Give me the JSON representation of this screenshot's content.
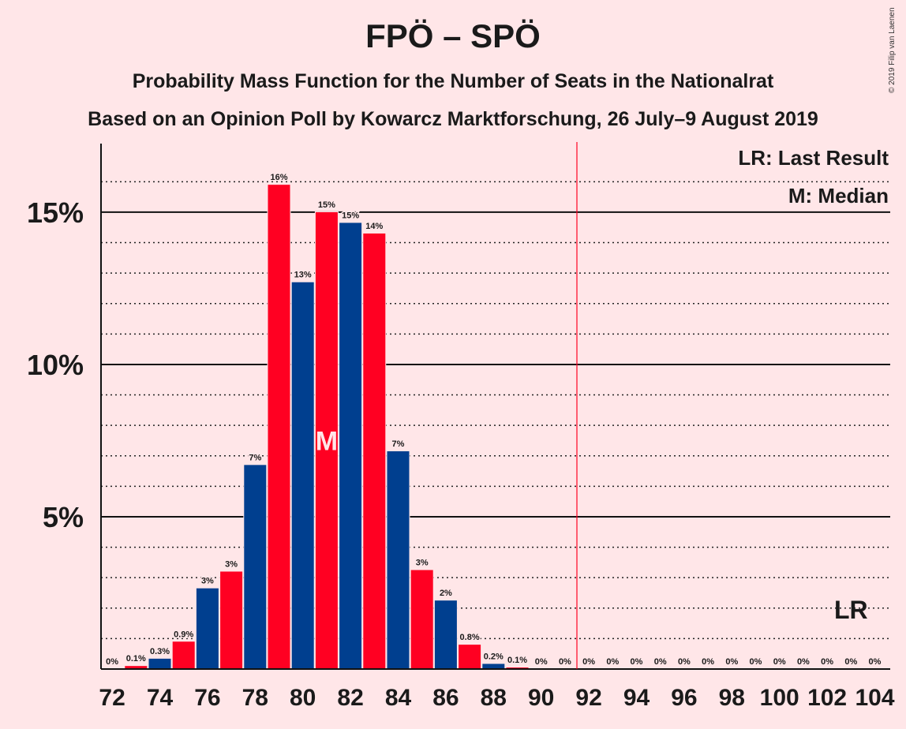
{
  "chart_data": {
    "type": "bar",
    "title": "FPÖ – SPÖ",
    "subtitle": "Probability Mass Function for the Number of Seats in the Nationalrat",
    "subtitle2": "Based on an Opinion Poll by Kowarcz Marktforschung, 26 July–9 August 2019",
    "copyright": "© 2019 Filip van Laenen",
    "x": [
      72,
      73,
      74,
      75,
      76,
      77,
      78,
      79,
      80,
      81,
      82,
      83,
      84,
      85,
      86,
      87,
      88,
      89,
      90,
      91,
      92,
      93,
      94,
      95,
      96,
      97,
      98,
      99,
      100,
      101,
      102,
      103,
      104
    ],
    "values": [
      0,
      0.1,
      0.34,
      0.9,
      2.65,
      3.2,
      6.7,
      15.9,
      12.7,
      15.0,
      14.65,
      14.3,
      7.15,
      3.25,
      2.25,
      0.8,
      0.17,
      0.05,
      0,
      0,
      0,
      0,
      0,
      0,
      0,
      0,
      0,
      0,
      0,
      0,
      0,
      0,
      0
    ],
    "data_labels": [
      "0%",
      "0.1%",
      "0.3%",
      "0.9%",
      "3%",
      "3%",
      "7%",
      "16%",
      "13%",
      "15%",
      "15%",
      "14%",
      "7%",
      "3%",
      "2%",
      "0.8%",
      "0.2%",
      "0.1%",
      "0%",
      "0%",
      "0%",
      "0%",
      "0%",
      "0%",
      "0%",
      "0%",
      "0%",
      "0%",
      "0%",
      "0%",
      "0%",
      "0%",
      "0%"
    ],
    "x_tick_labels": [
      "72",
      "74",
      "76",
      "78",
      "80",
      "82",
      "84",
      "86",
      "88",
      "90",
      "92",
      "94",
      "96",
      "98",
      "100",
      "102",
      "104"
    ],
    "y_tick_labels": [
      "5%",
      "10%",
      "15%"
    ],
    "y_ticks": [
      5,
      10,
      15
    ],
    "ylim": [
      0,
      17.2
    ],
    "colors": {
      "red": "#ff0022",
      "blue": "#003f8f",
      "majority_line": "#ff0022"
    },
    "majority_line_x": 91.5,
    "median_x": 81,
    "median_marker": "M",
    "last_result_x": 103,
    "last_result_marker": "LR",
    "legend": {
      "lr": "LR: Last Result",
      "m": "M: Median",
      "position": "top-right"
    }
  }
}
